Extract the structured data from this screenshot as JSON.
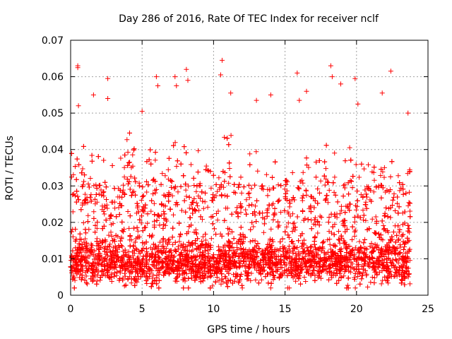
{
  "chart_data": {
    "type": "scatter",
    "title": "Day 286 of 2016, Rate Of TEC Index for receiver nclf",
    "xlabel": "GPS time / hours",
    "ylabel": "ROTI / TECUs",
    "xlim": [
      0,
      25
    ],
    "ylim": [
      0,
      0.07
    ],
    "xticks": [
      0,
      5,
      10,
      15,
      20,
      25
    ],
    "xtick_labels": [
      "0",
      "5",
      "10",
      "15",
      "20",
      "25"
    ],
    "yticks": [
      0,
      0.01,
      0.02,
      0.03,
      0.04,
      0.05,
      0.06,
      0.07
    ],
    "ytick_labels": [
      "0",
      "0.01",
      "0.02",
      "0.03",
      "0.04",
      "0.05",
      "0.06",
      "0.07"
    ],
    "grid": true,
    "marker": "+",
    "color": "#ff0000",
    "series": [
      {
        "name": "ROTI",
        "x_range": [
          0,
          23.75
        ],
        "typical_min": 0.002,
        "typical_median": 0.009,
        "typical_max": 0.045,
        "outliers": [
          {
            "x": 0.5,
            "y": 0.063
          },
          {
            "x": 0.5,
            "y": 0.0625
          },
          {
            "x": 0.55,
            "y": 0.052
          },
          {
            "x": 1.6,
            "y": 0.055
          },
          {
            "x": 2.6,
            "y": 0.0595
          },
          {
            "x": 2.6,
            "y": 0.054
          },
          {
            "x": 5.0,
            "y": 0.0505
          },
          {
            "x": 6.0,
            "y": 0.06
          },
          {
            "x": 6.1,
            "y": 0.0575
          },
          {
            "x": 7.3,
            "y": 0.06
          },
          {
            "x": 7.4,
            "y": 0.0575
          },
          {
            "x": 8.1,
            "y": 0.062
          },
          {
            "x": 8.2,
            "y": 0.059
          },
          {
            "x": 10.6,
            "y": 0.0645
          },
          {
            "x": 10.5,
            "y": 0.0605
          },
          {
            "x": 11.2,
            "y": 0.0555
          },
          {
            "x": 13.0,
            "y": 0.0535
          },
          {
            "x": 14.0,
            "y": 0.055
          },
          {
            "x": 15.85,
            "y": 0.061
          },
          {
            "x": 16.0,
            "y": 0.0535
          },
          {
            "x": 16.5,
            "y": 0.056
          },
          {
            "x": 18.2,
            "y": 0.063
          },
          {
            "x": 18.3,
            "y": 0.06
          },
          {
            "x": 18.9,
            "y": 0.058
          },
          {
            "x": 19.9,
            "y": 0.0595
          },
          {
            "x": 20.1,
            "y": 0.0525
          },
          {
            "x": 21.8,
            "y": 0.0555
          },
          {
            "x": 22.4,
            "y": 0.0615
          },
          {
            "x": 23.6,
            "y": 0.05
          }
        ]
      }
    ]
  }
}
